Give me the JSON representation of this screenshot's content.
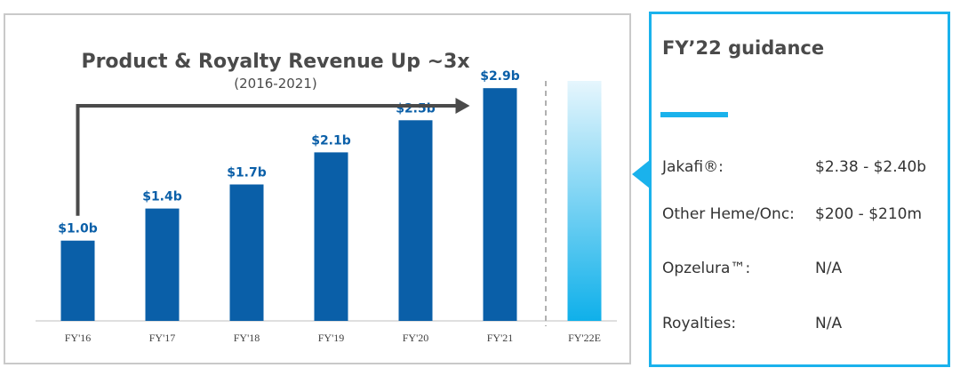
{
  "chart_data": {
    "type": "bar",
    "title": "Product & Royalty Revenue Up ~3x",
    "subtitle": "(2016-2021)",
    "categories": [
      "FY'16",
      "FY'17",
      "FY'18",
      "FY'19",
      "FY'20",
      "FY'21",
      "FY'22E"
    ],
    "values": [
      1.0,
      1.4,
      1.7,
      2.1,
      2.5,
      2.9,
      null
    ],
    "data_labels": [
      "$1.0b",
      "$1.4b",
      "$1.7b",
      "$2.1b",
      "$2.5b",
      "$2.9b",
      ""
    ],
    "ylim": [
      0,
      3.5
    ],
    "grid": false,
    "colors": {
      "bar": "#0a5fa8",
      "label": "#0a5fa8",
      "estimate_top": "#e6f6fd",
      "estimate_bottom": "#0fb0ea",
      "arrow": "#4a4a4a",
      "axis": "#bfbfbf"
    }
  },
  "guidance": {
    "title": "FY’22 guidance",
    "accent_color": "#1ab2ec",
    "rows": [
      {
        "label": "Jakafi®:",
        "value": "$2.38 - $2.40b"
      },
      {
        "label": "Other Heme/Onc:",
        "value": "$200 - $210m"
      },
      {
        "label": "Opzelura™:",
        "value": "N/A"
      },
      {
        "label": "Royalties:",
        "value": "N/A"
      }
    ]
  }
}
